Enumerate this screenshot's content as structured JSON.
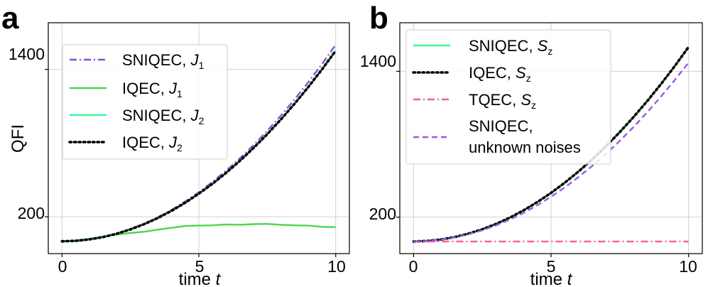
{
  "panels": {
    "a": {
      "letter": "a",
      "ylabel": "QFI",
      "xlabel_text": "time ",
      "xlabel_var": "t",
      "x_ticks": [
        "0",
        "5",
        "10"
      ],
      "y_ticks": [
        "200",
        "1400"
      ]
    },
    "b": {
      "letter": "b",
      "ylabel": "",
      "xlabel_text": "time ",
      "xlabel_var": "t",
      "x_ticks": [
        "0",
        "5",
        "10"
      ],
      "y_ticks": [
        "200",
        "1400"
      ]
    }
  },
  "legend_a": [
    {
      "name": "SNIQEC, ",
      "sym": "J",
      "sub": "1",
      "color": "#8a4fd8",
      "style": "dashdot"
    },
    {
      "name": "IQEC, ",
      "sym": "J",
      "sub": "1",
      "color": "#4cd64c",
      "style": "solid"
    },
    {
      "name": "SNIQEC, ",
      "sym": "J",
      "sub": "2",
      "color": "#3cf5a0",
      "style": "solid"
    },
    {
      "name": "IQEC, ",
      "sym": "J",
      "sub": "2",
      "color": "#000000",
      "style": "dotted"
    }
  ],
  "legend_b": [
    {
      "name": "SNIQEC, ",
      "sym": "S",
      "sub": "z",
      "color": "#3cf5a0",
      "style": "solid"
    },
    {
      "name": "IQEC, ",
      "sym": "S",
      "sub": "z",
      "color": "#000000",
      "style": "dotted"
    },
    {
      "name": "TQEC, ",
      "sym": "S",
      "sub": "z",
      "color": "#f0609a",
      "style": "dashdot"
    },
    {
      "name": "SNIQEC,",
      "line2": "unknown noises",
      "color": "#9a5ae0",
      "style": "dashed"
    }
  ],
  "chart_data": [
    {
      "type": "line",
      "panel": "a",
      "xlabel": "time t",
      "ylabel": "QFI",
      "xlim": [
        -0.5,
        10.5
      ],
      "ylim": [
        -100,
        1780
      ],
      "x": [
        0,
        0.5,
        1,
        1.5,
        2,
        2.5,
        3,
        3.5,
        4,
        4.5,
        5,
        5.5,
        6,
        6.5,
        7,
        7.5,
        8,
        8.5,
        9,
        9.5,
        10
      ],
      "series": [
        {
          "name": "SNIQEC, J1",
          "color": "#8a4fd8",
          "style": "dashdot",
          "values": [
            0,
            4,
            16,
            36,
            64,
            100,
            144,
            196,
            256,
            324,
            400,
            484,
            576,
            676,
            784,
            900,
            1024,
            1156,
            1296,
            1444,
            1600
          ]
        },
        {
          "name": "IQEC, J1",
          "color": "#4cd64c",
          "style": "solid",
          "values": [
            0,
            6,
            20,
            38,
            55,
            68,
            78,
            95,
            110,
            125,
            128,
            130,
            138,
            135,
            140,
            142,
            135,
            130,
            128,
            118,
            115
          ]
        },
        {
          "name": "SNIQEC, J2",
          "color": "#3cf5a0",
          "style": "solid",
          "values": [
            0,
            3.9,
            15.5,
            35,
            62,
            97,
            139.5,
            190,
            248,
            314,
            388,
            469,
            558.5,
            655.5,
            760.5,
            873,
            993,
            1121,
            1257,
            1400.5,
            1552
          ]
        },
        {
          "name": "IQEC, J2",
          "color": "#000000",
          "style": "dotted",
          "values": [
            0,
            3.9,
            15.5,
            35,
            62,
            97,
            139.5,
            190,
            248,
            314,
            388,
            469,
            558.5,
            655.5,
            760.5,
            873,
            993,
            1121,
            1257,
            1400.5,
            1552
          ]
        }
      ]
    },
    {
      "type": "line",
      "panel": "b",
      "xlabel": "time t",
      "ylabel": "",
      "xlim": [
        -0.5,
        10.5
      ],
      "ylim": [
        -100,
        1800
      ],
      "x": [
        0,
        0.5,
        1,
        1.5,
        2,
        2.5,
        3,
        3.5,
        4,
        4.5,
        5,
        5.5,
        6,
        6.5,
        7,
        7.5,
        8,
        8.5,
        9,
        9.5,
        10
      ],
      "series": [
        {
          "name": "SNIQEC, Sz",
          "color": "#3cf5a0",
          "style": "solid",
          "values": [
            0,
            4,
            16,
            36,
            64,
            100,
            144,
            196,
            256,
            324,
            400,
            484,
            576,
            676,
            784,
            900,
            1024,
            1156,
            1296,
            1444,
            1600
          ]
        },
        {
          "name": "IQEC, Sz",
          "color": "#000000",
          "style": "dotted",
          "values": [
            0,
            4,
            16,
            36,
            64,
            100,
            144,
            196,
            256,
            324,
            400,
            484,
            576,
            676,
            784,
            900,
            1024,
            1156,
            1296,
            1444,
            1600
          ]
        },
        {
          "name": "TQEC, Sz",
          "color": "#f0609a",
          "style": "dashdot",
          "values": [
            0,
            0,
            0,
            0,
            0,
            0,
            0,
            0,
            0,
            0,
            0,
            0,
            0,
            0,
            0,
            0,
            0,
            0,
            0,
            0,
            0
          ]
        },
        {
          "name": "SNIQEC, unknown noises",
          "color": "#9a5ae0",
          "style": "dashed",
          "values": [
            0,
            3.7,
            14.7,
            33,
            59,
            92,
            132.5,
            180,
            235,
            298,
            368,
            445,
            530,
            622,
            721,
            828,
            942,
            1064,
            1193,
            1329,
            1472
          ]
        }
      ]
    }
  ]
}
